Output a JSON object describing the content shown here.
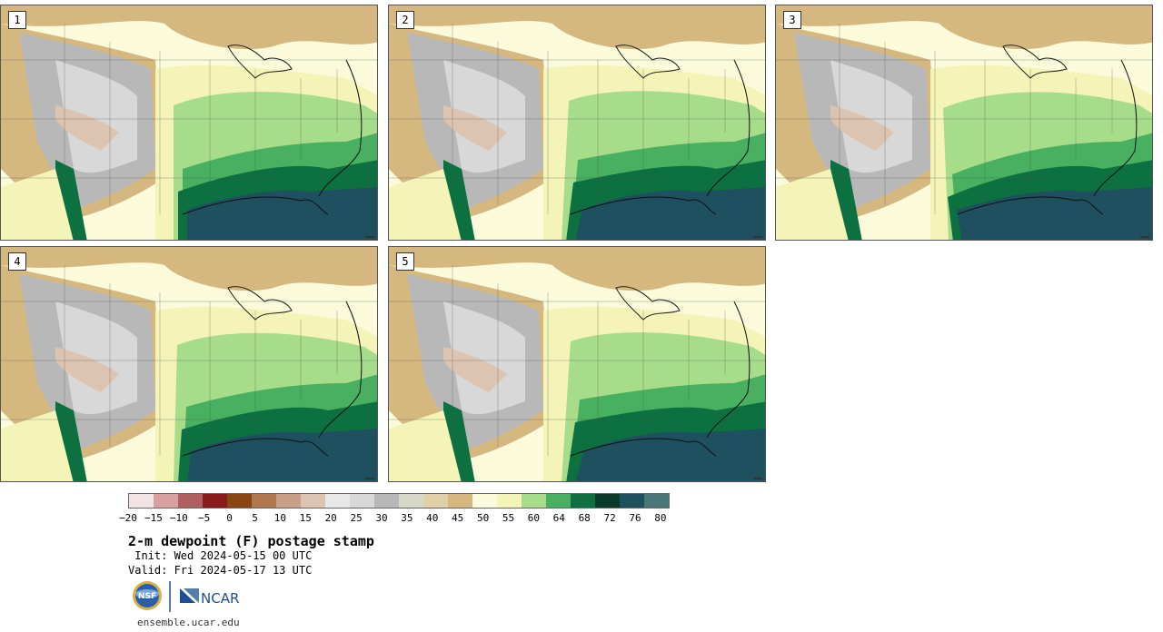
{
  "panels": [
    {
      "label": "1"
    },
    {
      "label": "2"
    },
    {
      "label": "3"
    },
    {
      "label": "4"
    },
    {
      "label": "5"
    }
  ],
  "colorbar": {
    "colors": [
      "#f2e4e4",
      "#d8a0a0",
      "#b06060",
      "#8a1a1a",
      "#8b4513",
      "#b07850",
      "#c8a088",
      "#dcc4b0",
      "#e8e8e8",
      "#d8d8d8",
      "#b8b8b8",
      "#d8d8c8",
      "#e0d0a8",
      "#d4b880",
      "#fbfbdc",
      "#f4f4b8",
      "#a6dc8a",
      "#48b060",
      "#0c7040",
      "#0a3a2a",
      "#1e5060",
      "#4a7878"
    ],
    "ticks": [
      "−20",
      "−15",
      "−10",
      "−5",
      "0",
      "5",
      "10",
      "15",
      "20",
      "25",
      "30",
      "35",
      "40",
      "45",
      "50",
      "55",
      "60",
      "64",
      "68",
      "72",
      "76",
      "80"
    ]
  },
  "title": "2-m dewpoint (F) postage stamp",
  "init": " Init: Wed 2024-05-15 00 UTC",
  "valid": "Valid: Fri 2024-05-17 13 UTC",
  "logos": {
    "nsf": "NSF",
    "ncar": "NCAR"
  },
  "footer_url": "ensemble.ucar.edu",
  "map_colors": {
    "moist_dark": "#1e5060",
    "moist_green": "#0c7040",
    "green_mid": "#48b060",
    "green_light": "#a6dc8a",
    "yellow": "#f4f4b8",
    "cream": "#fbfbdc",
    "tan": "#d4b880",
    "gray": "#b8b8b8",
    "light_gray": "#d8d8d8",
    "pink": "#dcc4b0"
  }
}
